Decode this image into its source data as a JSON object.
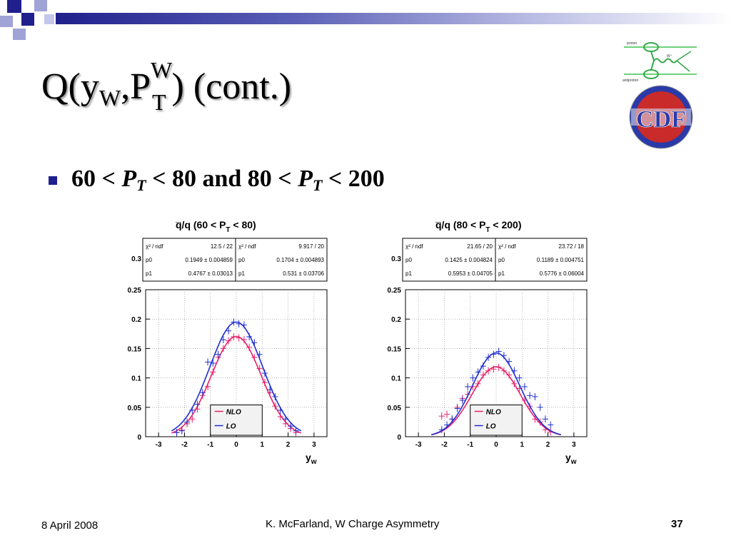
{
  "slide": {
    "title": {
      "q": "Q(y",
      "w_sub": "W",
      "comma_p": ",P",
      "w_sup": "W",
      "t_sub": "T",
      "rest": ") (cont.)"
    },
    "bullet": {
      "a": "60 < ",
      "p1": "P",
      "t1": "T",
      "b": " < 80 and 80 < ",
      "p2": "P",
      "t2": "T",
      "c": " < 200"
    },
    "footer": {
      "date": "8 April 2008",
      "author": "K. McFarland, W Charge Asymmetry",
      "page": "37"
    },
    "logo": {
      "top_labels": [
        "proton",
        "W⁺",
        "antiproton"
      ],
      "emblem": "CDF"
    }
  },
  "colors": {
    "nlo": "#e8206a",
    "lo": "#1f2fd0",
    "blue_deco": "#20208c",
    "title_shadow": "#9a9a9a"
  },
  "chart_data": [
    {
      "type": "line",
      "title": "q̅/q (60 < P",
      "title_sub": "T",
      "title_end": " < 80)",
      "xlabel": "y",
      "xlabel_sub": "w",
      "xlim": [
        -3.5,
        3.5
      ],
      "ylim": [
        0,
        0.25
      ],
      "yticks": [
        "0",
        "0.05",
        "0.1",
        "0.15",
        "0.2",
        "0.25"
      ],
      "ytick_vals": [
        0,
        0.05,
        0.1,
        0.15,
        0.2,
        0.25
      ],
      "ytop_label": "0.3",
      "xticks": [
        "-3",
        "-2",
        "-1",
        "0",
        "1",
        "2",
        "3"
      ],
      "xtick_vals": [
        -3,
        -2,
        -1,
        0,
        1,
        2,
        3
      ],
      "stats": {
        "rows": [
          {
            "name": "χ² / ndf",
            "v1": "12.5 / 22",
            "v2": "9.917 / 20"
          },
          {
            "name": "p0",
            "v1": "0.1949 ± 0.004859",
            "v2": "0.1704 ± 0.004893"
          },
          {
            "name": "p1",
            "v1": "0.4767 ± 0.03013",
            "v2": "0.531 ± 0.03706"
          }
        ]
      },
      "legend": [
        "NLO",
        "LO"
      ],
      "series": [
        {
          "name": "NLO",
          "p0": 0.1704,
          "p1": 0.531,
          "points": [
            [
              -2.3,
              0.007
            ],
            [
              -2.1,
              0.011
            ],
            [
              -1.9,
              0.022
            ],
            [
              -1.7,
              0.03
            ],
            [
              -1.5,
              0.047
            ],
            [
              -1.3,
              0.07
            ],
            [
              -1.1,
              0.085
            ],
            [
              -0.9,
              0.11
            ],
            [
              -0.7,
              0.135
            ],
            [
              -0.5,
              0.15
            ],
            [
              -0.3,
              0.163
            ],
            [
              -0.1,
              0.17
            ],
            [
              0.1,
              0.168
            ],
            [
              0.3,
              0.165
            ],
            [
              0.5,
              0.152
            ],
            [
              0.7,
              0.135
            ],
            [
              0.9,
              0.116
            ],
            [
              1.1,
              0.092
            ],
            [
              1.3,
              0.075
            ],
            [
              1.5,
              0.052
            ],
            [
              1.7,
              0.034
            ],
            [
              1.9,
              0.022
            ],
            [
              2.1,
              0.014
            ],
            [
              2.3,
              0.007
            ]
          ]
        },
        {
          "name": "LO",
          "p0": 0.1949,
          "p1": 0.4767,
          "points": [
            [
              -2.3,
              0.007
            ],
            [
              -2.1,
              0.01
            ],
            [
              -1.9,
              0.025
            ],
            [
              -1.7,
              0.045
            ],
            [
              -1.5,
              0.055
            ],
            [
              -1.3,
              0.075
            ],
            [
              -1.1,
              0.127
            ],
            [
              -0.9,
              0.125
            ],
            [
              -0.7,
              0.14
            ],
            [
              -0.5,
              0.165
            ],
            [
              -0.3,
              0.18
            ],
            [
              -0.1,
              0.195
            ],
            [
              0.1,
              0.192
            ],
            [
              0.3,
              0.19
            ],
            [
              0.5,
              0.17
            ],
            [
              0.7,
              0.16
            ],
            [
              0.9,
              0.14
            ],
            [
              1.1,
              0.108
            ],
            [
              1.3,
              0.08
            ],
            [
              1.5,
              0.068
            ],
            [
              1.7,
              0.045
            ],
            [
              1.9,
              0.03
            ],
            [
              2.1,
              0.018
            ],
            [
              2.3,
              0.01
            ]
          ]
        }
      ]
    },
    {
      "type": "line",
      "title": "q̅/q (80 < P",
      "title_sub": "T",
      "title_end": " < 200)",
      "xlabel": "y",
      "xlabel_sub": "w",
      "xlim": [
        -3.5,
        3.5
      ],
      "ylim": [
        0,
        0.25
      ],
      "yticks": [
        "0",
        "0.05",
        "0.1",
        "0.15",
        "0.2",
        "0.25"
      ],
      "ytick_vals": [
        0,
        0.05,
        0.1,
        0.15,
        0.2,
        0.25
      ],
      "ytop_label": "0.3",
      "xticks": [
        "-3",
        "-2",
        "-1",
        "0",
        "1",
        "2",
        "3"
      ],
      "xtick_vals": [
        -3,
        -2,
        -1,
        0,
        1,
        2,
        3
      ],
      "stats": {
        "rows": [
          {
            "name": "χ² / ndf",
            "v1": "21.65 / 20",
            "v2": "23.72 / 18"
          },
          {
            "name": "p0",
            "v1": "0.1425 ± 0.004824",
            "v2": "0.1189 ± 0.004751"
          },
          {
            "name": "p1",
            "v1": "0.5953 ± 0.04705",
            "v2": "0.5776 ± 0.06004"
          }
        ]
      },
      "legend": [
        "NLO",
        "LO"
      ],
      "series": [
        {
          "name": "NLO",
          "p0": 0.1189,
          "p1": 0.5776,
          "points": [
            [
              -2.1,
              0.035
            ],
            [
              -1.9,
              0.038
            ],
            [
              -1.7,
              0.03
            ],
            [
              -1.5,
              0.05
            ],
            [
              -1.3,
              0.065
            ],
            [
              -1.1,
              0.072
            ],
            [
              -0.9,
              0.085
            ],
            [
              -0.7,
              0.09
            ],
            [
              -0.5,
              0.105
            ],
            [
              -0.3,
              0.112
            ],
            [
              -0.1,
              0.115
            ],
            [
              0.1,
              0.118
            ],
            [
              0.3,
              0.112
            ],
            [
              0.5,
              0.105
            ],
            [
              0.7,
              0.09
            ],
            [
              0.9,
              0.082
            ],
            [
              1.1,
              0.062
            ],
            [
              1.3,
              0.052
            ],
            [
              1.5,
              0.03
            ],
            [
              1.7,
              0.025
            ],
            [
              1.9,
              0.012
            ],
            [
              2.1,
              0.008
            ]
          ]
        },
        {
          "name": "LO",
          "p0": 0.1425,
          "p1": 0.5953,
          "points": [
            [
              -2.1,
              0.012
            ],
            [
              -1.9,
              0.02
            ],
            [
              -1.7,
              0.03
            ],
            [
              -1.5,
              0.048
            ],
            [
              -1.3,
              0.062
            ],
            [
              -1.1,
              0.085
            ],
            [
              -0.9,
              0.1
            ],
            [
              -0.7,
              0.11
            ],
            [
              -0.5,
              0.12
            ],
            [
              -0.3,
              0.135
            ],
            [
              -0.1,
              0.14
            ],
            [
              0.1,
              0.145
            ],
            [
              0.3,
              0.138
            ],
            [
              0.5,
              0.128
            ],
            [
              0.7,
              0.112
            ],
            [
              0.9,
              0.1
            ],
            [
              1.1,
              0.085
            ],
            [
              1.3,
              0.07
            ],
            [
              1.5,
              0.068
            ],
            [
              1.7,
              0.05
            ],
            [
              1.9,
              0.03
            ],
            [
              2.1,
              0.02
            ]
          ]
        }
      ]
    }
  ]
}
